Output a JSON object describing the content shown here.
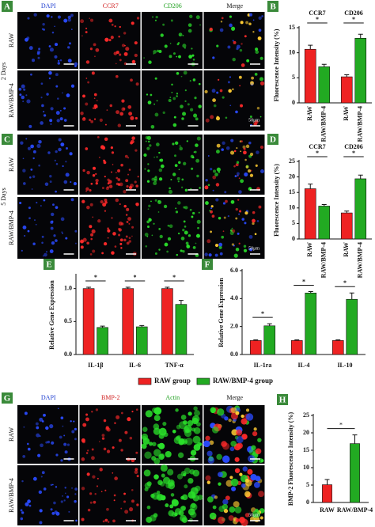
{
  "figure": {
    "image_panels": [
      {
        "label": "A",
        "columns": [
          "DAPI",
          "CCR7",
          "CD206",
          "Merge"
        ],
        "column_colors": [
          "#1f3fd0",
          "#d01f1f",
          "#1fa01f",
          "#111111"
        ],
        "rows": [
          "RAW",
          "RAW/BMP-4"
        ],
        "group": "2 Days",
        "scale_bar": "50μm"
      },
      {
        "label": "C",
        "rows": [
          "RAW",
          "RAW/BMP-4"
        ],
        "group": "5 Days",
        "scale_bar": "50μm"
      },
      {
        "label": "G",
        "columns": [
          "DAPI",
          "BMP-2",
          "Actin",
          "Merge"
        ],
        "column_colors": [
          "#1f3fd0",
          "#d01f1f",
          "#1fa01f",
          "#111111"
        ],
        "rows": [
          "RAW",
          "RAW/BMP-4"
        ],
        "scale_bar": "50μm"
      }
    ]
  },
  "chart_data": [
    {
      "type": "bar",
      "panel_label": "B",
      "y_label": "Fluorescence Intensity (%)",
      "categories": [
        "CCR7",
        "CD206"
      ],
      "category_label_position": "top",
      "series_labels_on_axis": true,
      "series": [
        {
          "name": "RAW",
          "color": "#ee2222",
          "values": [
            10.7,
            5.2
          ],
          "errors": [
            0.8,
            0.4
          ]
        },
        {
          "name": "RAW/BMP-4",
          "color": "#22aa22",
          "values": [
            7.2,
            12.9
          ],
          "errors": [
            0.5,
            0.8
          ]
        }
      ],
      "significance": [
        "*",
        "*"
      ],
      "ylim": [
        0,
        15
      ],
      "yticks": [
        0,
        5,
        10,
        15
      ]
    },
    {
      "type": "bar",
      "panel_label": "D",
      "y_label": "Fluorescence Intensity (%)",
      "categories": [
        "CCR7",
        "CD206"
      ],
      "category_label_position": "top",
      "series_labels_on_axis": true,
      "series": [
        {
          "name": "RAW",
          "color": "#ee2222",
          "values": [
            16.2,
            8.4
          ],
          "errors": [
            1.5,
            0.6
          ]
        },
        {
          "name": "RAW/BMP-4",
          "color": "#22aa22",
          "values": [
            10.6,
            19.4
          ],
          "errors": [
            0.5,
            1.2
          ]
        }
      ],
      "significance": [
        "*",
        "*"
      ],
      "ylim": [
        0,
        25
      ],
      "yticks": [
        0,
        5,
        10,
        15,
        20,
        25
      ]
    },
    {
      "type": "bar",
      "panel_label": "E",
      "y_label": "Relative Gene Expression",
      "categories": [
        "IL-1β",
        "IL-6",
        "TNF-α"
      ],
      "category_label_position": "bottom",
      "legend": true,
      "series": [
        {
          "name": "RAW group",
          "color": "#ee2222",
          "values": [
            1,
            1,
            1
          ],
          "errors": [
            0.02,
            0.02,
            0.02
          ]
        },
        {
          "name": "RAW/BMP-4 group",
          "color": "#22aa22",
          "values": [
            0.41,
            0.42,
            0.76
          ],
          "errors": [
            0.02,
            0.02,
            0.06
          ]
        }
      ],
      "significance": [
        "*",
        "*",
        "*"
      ],
      "ylim": [
        0,
        1.2
      ],
      "yticks": [
        {
          "value": 0,
          "label": "0.0"
        },
        {
          "value": 0.5,
          "label": "0.5"
        },
        {
          "value": 1,
          "label": "1.0"
        }
      ]
    },
    {
      "type": "bar",
      "panel_label": "F",
      "y_label": "Relative Gene Expression",
      "categories": [
        "IL-1ra",
        "IL-4",
        "IL-10"
      ],
      "category_label_position": "bottom",
      "series": [
        {
          "color": "#ee2222",
          "values": [
            1,
            1,
            1
          ],
          "errors": [
            0.05,
            0.05,
            0.05
          ]
        },
        {
          "color": "#22aa22",
          "values": [
            2.05,
            4.4,
            3.95
          ],
          "errors": [
            0.15,
            0.1,
            0.45
          ]
        }
      ],
      "significance": [
        "*",
        "*",
        "*"
      ],
      "ylim": [
        0,
        6
      ],
      "yticks": [
        {
          "value": 0,
          "label": "0.0"
        },
        {
          "value": 2,
          "label": "2.0"
        },
        {
          "value": 4,
          "label": "4.0"
        },
        {
          "value": 6,
          "label": "6.0"
        }
      ]
    },
    {
      "type": "bar",
      "panel_label": "H",
      "y_label": "BMP-2 Fluorescence Intensity (%)",
      "categories": [
        "RAW",
        "RAW/BMP-4"
      ],
      "category_label_position": "bottom",
      "values": [
        5.1,
        16.9
      ],
      "errors": [
        1.5,
        2.5
      ],
      "colors": [
        "#ee2222",
        "#22aa22"
      ],
      "significance": [
        "*"
      ],
      "ylim": [
        0,
        25
      ],
      "yticks": [
        0,
        5,
        10,
        15,
        20,
        25
      ]
    }
  ]
}
